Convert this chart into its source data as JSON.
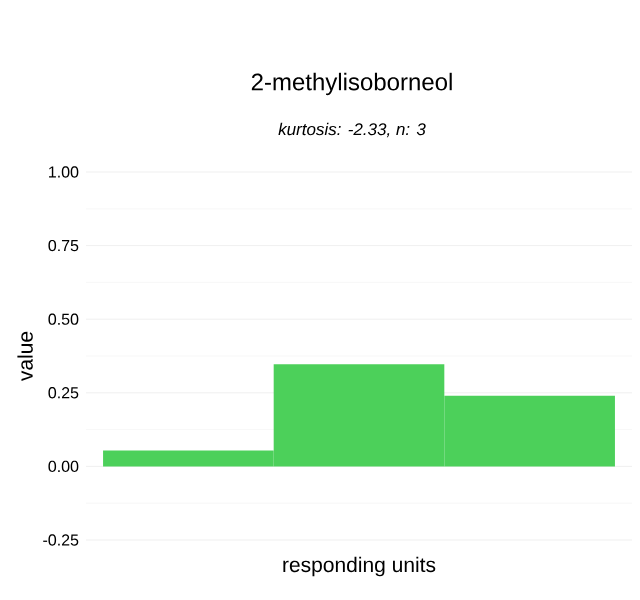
{
  "chart_data": {
    "type": "bar",
    "title": "2-methylisoborneol",
    "subtitle": "kurtosis: -2.33, n: 3",
    "xlabel": "responding units",
    "ylabel": "value",
    "categories": [
      null,
      null,
      null
    ],
    "values": [
      0.054,
      0.347,
      0.24
    ],
    "color": "#4cd05a",
    "ylim": [
      -0.25,
      1.0
    ],
    "yticks": [
      -0.25,
      {
        "value": 0,
        "label": "0.00"
      },
      0.25,
      {
        "value": 0.5,
        "label": "0.50"
      },
      0.75,
      {
        "value": 1,
        "label": "1.00"
      }
    ],
    "grid": "y"
  }
}
